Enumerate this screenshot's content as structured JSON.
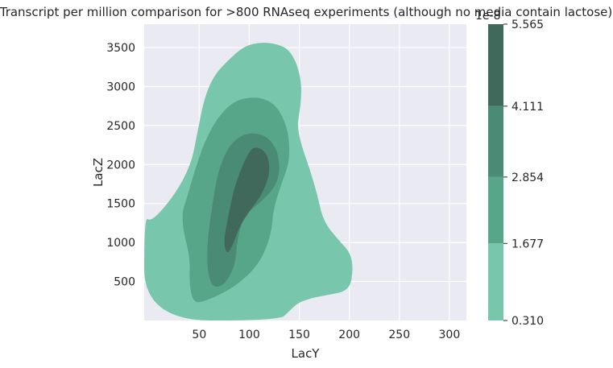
{
  "chart_data": {
    "type": "contour",
    "title": "Transcript per million comparison for >800 RNAseq experiments (although no media contain lactose)",
    "xlabel": "LacY",
    "ylabel": "LacZ",
    "xlim": [
      -5,
      317
    ],
    "ylim": [
      0,
      3800
    ],
    "x_ticks": [
      50,
      100,
      150,
      200,
      250,
      300
    ],
    "y_ticks": [
      500,
      1000,
      1500,
      2000,
      2500,
      3000,
      3500
    ],
    "grid": true,
    "colorbar": {
      "exponent_label": "1e-8",
      "min": 0.31,
      "max": 5.565,
      "ticks": [
        0.31,
        1.677,
        2.854,
        4.111,
        5.565
      ],
      "tick_labels": [
        "0.310",
        "1.677",
        "2.854",
        "4.111",
        "5.565"
      ],
      "colors": [
        "#78c6ab",
        "#57a68a",
        "#4a8b75",
        "#40695b"
      ]
    },
    "levels": [
      {
        "threshold": 0.31,
        "color": "#78c6ab",
        "polygon": [
          [
            -5,
            1340
          ],
          [
            2,
            1260
          ],
          [
            25,
            1600
          ],
          [
            42,
            2000
          ],
          [
            48,
            2400
          ],
          [
            55,
            2850
          ],
          [
            65,
            3150
          ],
          [
            80,
            3350
          ],
          [
            95,
            3520
          ],
          [
            112,
            3570
          ],
          [
            128,
            3545
          ],
          [
            140,
            3470
          ],
          [
            148,
            3280
          ],
          [
            152,
            3050
          ],
          [
            152,
            2850
          ],
          [
            150,
            2650
          ],
          [
            148,
            2500
          ],
          [
            152,
            2250
          ],
          [
            160,
            1960
          ],
          [
            168,
            1620
          ],
          [
            174,
            1270
          ],
          [
            190,
            1020
          ],
          [
            201,
            870
          ],
          [
            204,
            650
          ],
          [
            200,
            380
          ],
          [
            175,
            320
          ],
          [
            160,
            280
          ],
          [
            148,
            220
          ],
          [
            140,
            120
          ],
          [
            130,
            0
          ],
          [
            -5,
            0
          ]
        ]
      },
      {
        "threshold": 1.677,
        "color": "#57a68a",
        "polygon": [
          [
            37,
            1540
          ],
          [
            45,
            1900
          ],
          [
            55,
            2280
          ],
          [
            68,
            2600
          ],
          [
            85,
            2820
          ],
          [
            105,
            2870
          ],
          [
            120,
            2820
          ],
          [
            130,
            2700
          ],
          [
            137,
            2500
          ],
          [
            140,
            2300
          ],
          [
            140,
            2100
          ],
          [
            138,
            1950
          ],
          [
            132,
            1750
          ],
          [
            124,
            1420
          ],
          [
            122,
            1100
          ],
          [
            110,
            720
          ],
          [
            85,
            420
          ],
          [
            55,
            240
          ],
          [
            44,
            230
          ],
          [
            40,
            470
          ],
          [
            41,
            800
          ],
          [
            34,
            1150
          ],
          [
            33,
            1400
          ]
        ]
      },
      {
        "threshold": 2.854,
        "color": "#4a8b75",
        "polygon": [
          [
            60,
            1200
          ],
          [
            65,
            1650
          ],
          [
            70,
            1960
          ],
          [
            80,
            2250
          ],
          [
            95,
            2400
          ],
          [
            110,
            2400
          ],
          [
            120,
            2330
          ],
          [
            127,
            2200
          ],
          [
            130,
            2050
          ],
          [
            130,
            1870
          ],
          [
            125,
            1700
          ],
          [
            110,
            1500
          ],
          [
            95,
            1350
          ],
          [
            88,
            1050
          ],
          [
            86,
            700
          ],
          [
            75,
            450
          ],
          [
            63,
            420
          ],
          [
            58,
            650
          ],
          [
            58,
            950
          ]
        ]
      },
      {
        "threshold": 4.111,
        "color": "#40695b",
        "polygon": [
          [
            74,
            1000
          ],
          [
            80,
            1400
          ],
          [
            85,
            1700
          ],
          [
            92,
            1950
          ],
          [
            100,
            2170
          ],
          [
            106,
            2230
          ],
          [
            115,
            2180
          ],
          [
            120,
            2050
          ],
          [
            120,
            1850
          ],
          [
            112,
            1600
          ],
          [
            100,
            1400
          ],
          [
            90,
            1200
          ],
          [
            84,
            980
          ],
          [
            78,
            840
          ]
        ]
      }
    ]
  }
}
